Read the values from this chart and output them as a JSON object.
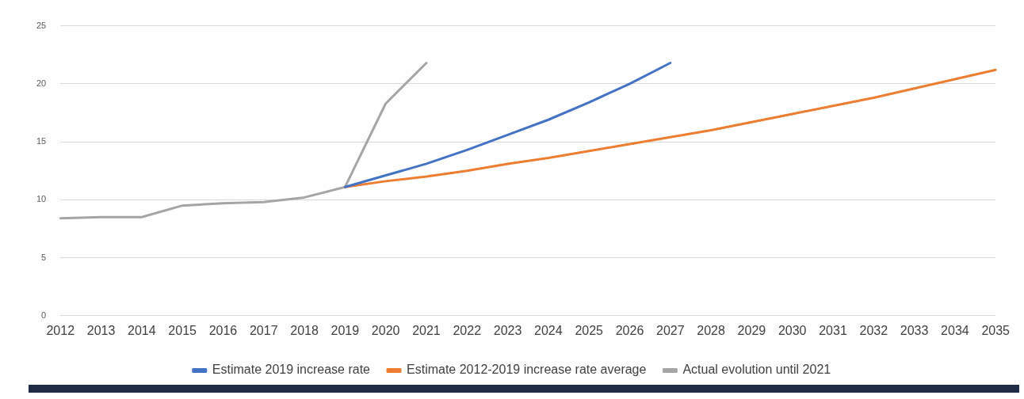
{
  "chart_data": {
    "type": "line",
    "categories": [
      "2012",
      "2013",
      "2014",
      "2015",
      "2016",
      "2017",
      "2018",
      "2019",
      "2020",
      "2021",
      "2022",
      "2023",
      "2024",
      "2025",
      "2026",
      "2027",
      "2028",
      "2029",
      "2030",
      "2031",
      "2032",
      "2033",
      "2034",
      "2035"
    ],
    "series": [
      {
        "name": "Estimate 2019 increase rate",
        "color": "#4472c4",
        "values": [
          null,
          null,
          null,
          null,
          null,
          null,
          null,
          11.1,
          12.1,
          13.1,
          14.3,
          15.6,
          16.9,
          18.4,
          20.0,
          21.8,
          null,
          null,
          null,
          null,
          null,
          null,
          null,
          null
        ]
      },
      {
        "name": "Estimate 2012-2019 increase rate average",
        "color": "#ed7d31",
        "values": [
          null,
          null,
          null,
          null,
          null,
          null,
          null,
          11.1,
          11.6,
          12.0,
          12.5,
          13.1,
          13.6,
          14.2,
          14.8,
          15.4,
          16.0,
          16.7,
          17.4,
          18.1,
          18.8,
          19.6,
          20.4,
          21.2
        ]
      },
      {
        "name": "Actual evolution until 2021",
        "color": "#a5a5a5",
        "values": [
          8.4,
          8.5,
          8.5,
          9.5,
          9.7,
          9.8,
          10.2,
          11.1,
          18.3,
          21.8,
          null,
          null,
          null,
          null,
          null,
          null,
          null,
          null,
          null,
          null,
          null,
          null,
          null,
          null
        ]
      }
    ],
    "ylim": [
      0,
      25
    ],
    "yticks": [
      0,
      5,
      10,
      15,
      20,
      25
    ],
    "grid": "y",
    "legend": "bottom",
    "marker": "none",
    "line_style": "solid"
  }
}
